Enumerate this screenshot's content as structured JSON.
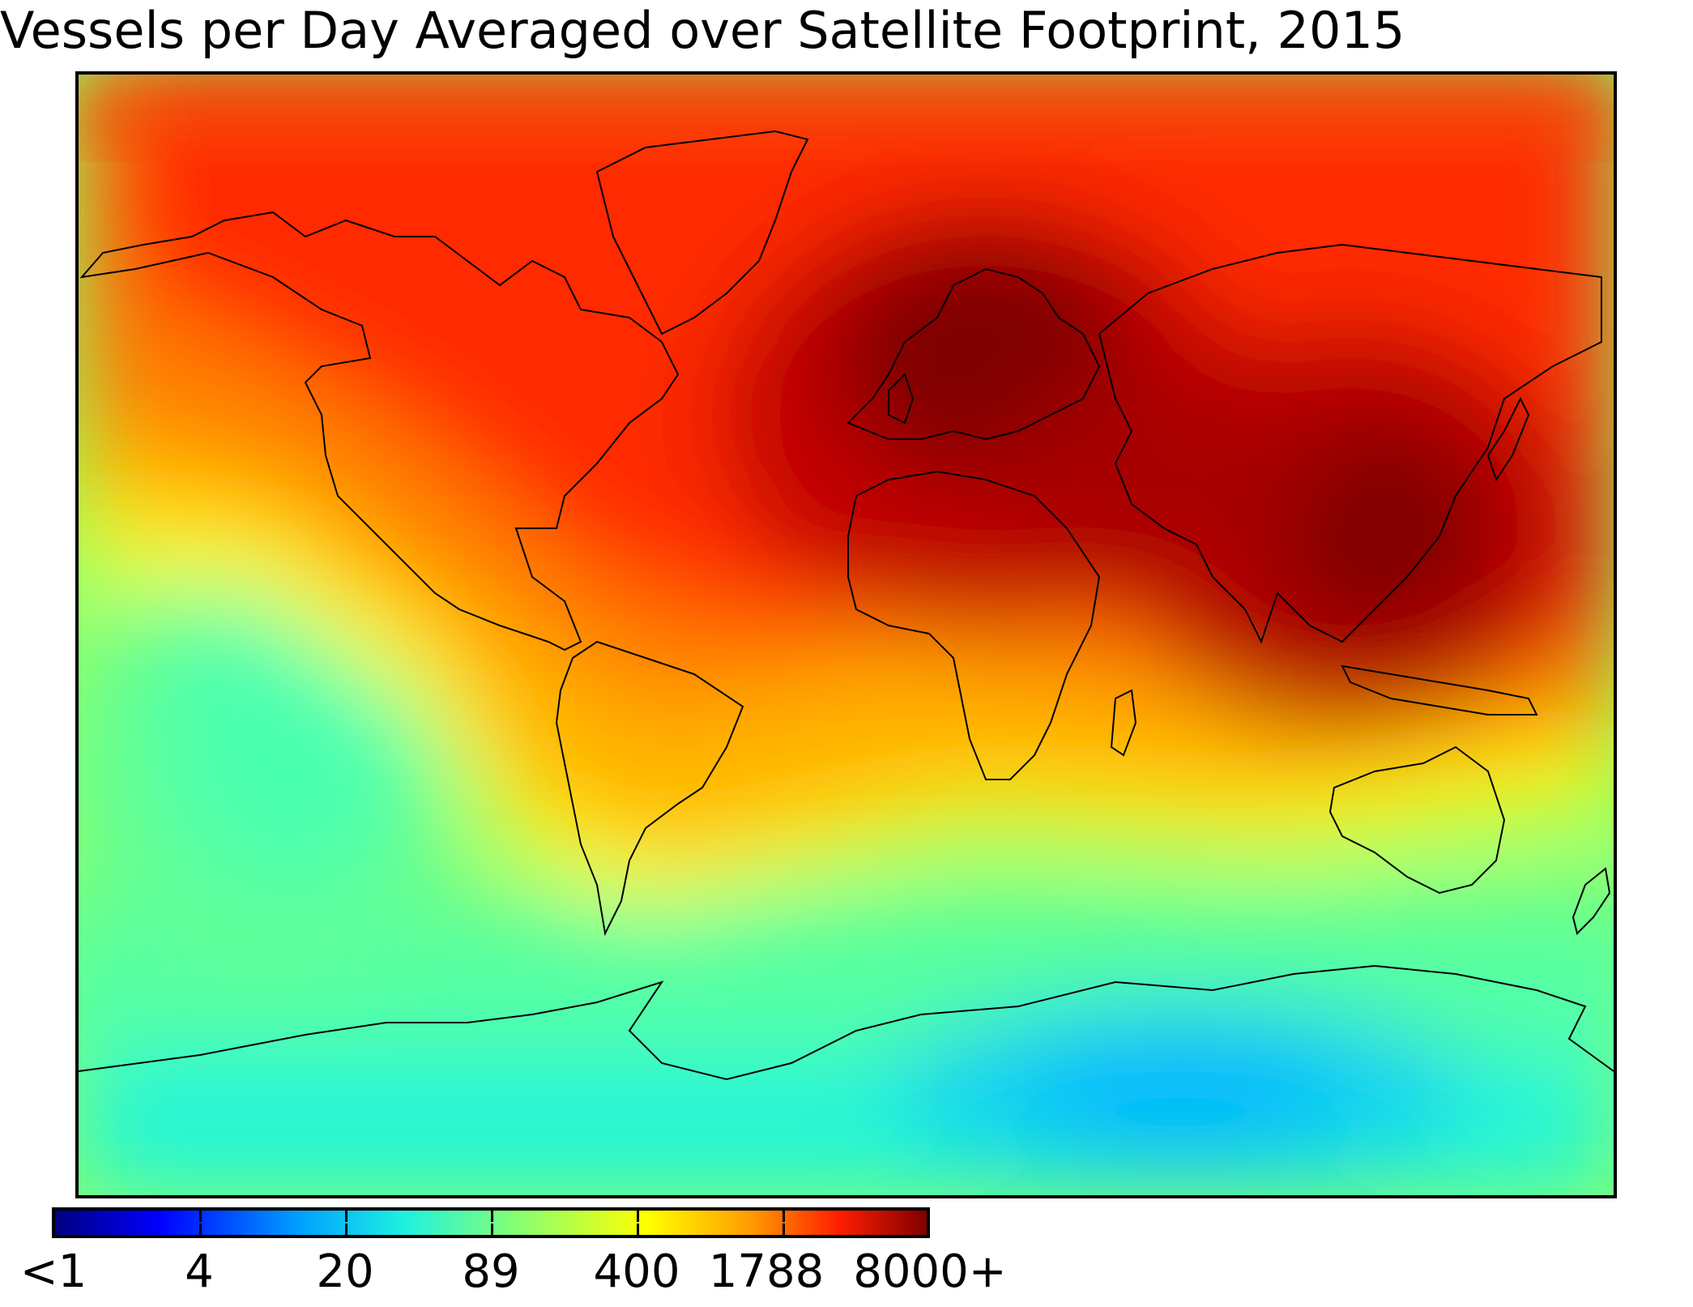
{
  "title": "Vessels per Day Averaged over Satellite Footprint, 2015",
  "colorbar": {
    "colormap": "jet",
    "tick_labels": [
      "<1",
      "4",
      "20",
      "89",
      "400",
      "1788",
      "8000+"
    ]
  },
  "colors": {
    "max_density": "#7f0000",
    "high": "#ff2a00",
    "mid": "#ffb400",
    "low_mid": "#ffff20",
    "low": "#7dff7a",
    "min_density": "#00b4ff",
    "coastline": "#000000"
  }
}
